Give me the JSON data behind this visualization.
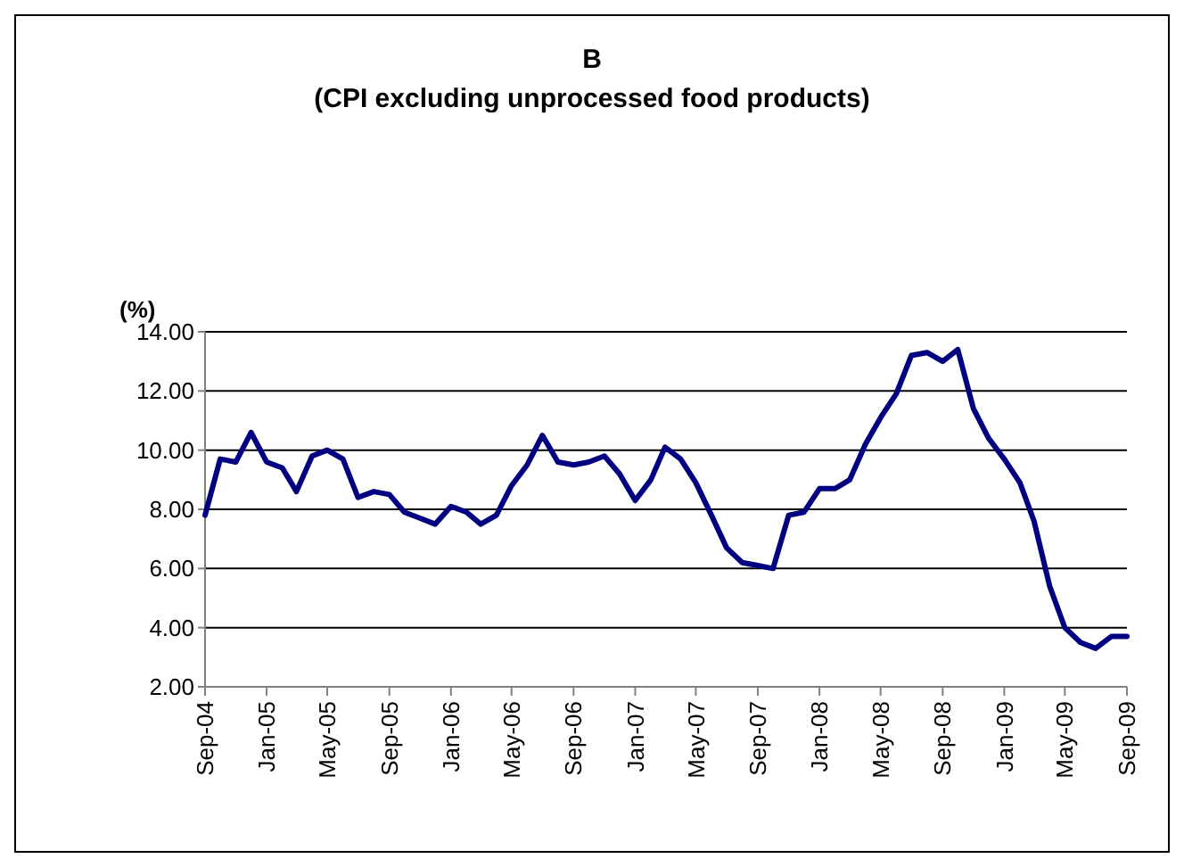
{
  "chart_data": {
    "type": "line",
    "title": "B",
    "subtitle": "(CPI excluding unprocessed food products)",
    "ylabel": "(%)",
    "x": [
      "2004-09",
      "2004-10",
      "2004-11",
      "2004-12",
      "2005-01",
      "2005-02",
      "2005-03",
      "2005-04",
      "2005-05",
      "2005-06",
      "2005-07",
      "2005-08",
      "2005-09",
      "2005-10",
      "2005-11",
      "2005-12",
      "2006-01",
      "2006-02",
      "2006-03",
      "2006-04",
      "2006-05",
      "2006-06",
      "2006-07",
      "2006-08",
      "2006-09",
      "2006-10",
      "2006-11",
      "2006-12",
      "2007-01",
      "2007-02",
      "2007-03",
      "2007-04",
      "2007-05",
      "2007-06",
      "2007-07",
      "2007-08",
      "2007-09",
      "2007-10",
      "2007-11",
      "2007-12",
      "2008-01",
      "2008-02",
      "2008-03",
      "2008-04",
      "2008-05",
      "2008-06",
      "2008-07",
      "2008-08",
      "2008-09",
      "2008-10",
      "2008-11",
      "2008-12",
      "2009-01",
      "2009-02",
      "2009-03",
      "2009-04",
      "2009-05",
      "2009-06",
      "2009-07",
      "2009-08",
      "2009-09"
    ],
    "series": [
      {
        "color": "#000080",
        "values": [
          7.8,
          9.7,
          9.6,
          10.6,
          9.6,
          9.4,
          8.6,
          9.8,
          10.0,
          9.7,
          8.4,
          8.6,
          8.5,
          7.9,
          7.7,
          7.5,
          8.1,
          7.9,
          7.5,
          7.8,
          8.8,
          9.5,
          10.5,
          9.6,
          9.5,
          9.6,
          9.8,
          9.2,
          8.3,
          9.0,
          10.1,
          9.7,
          8.9,
          7.8,
          6.7,
          6.2,
          6.1,
          6.0,
          7.8,
          7.9,
          8.7,
          8.7,
          9.0,
          10.2,
          11.1,
          11.9,
          13.2,
          13.3,
          13.0,
          13.4,
          11.4,
          10.4,
          9.7,
          8.9,
          7.6,
          5.4,
          4.0,
          3.5,
          3.3,
          3.7,
          3.7
        ]
      }
    ],
    "xlim": [
      "2004-09",
      "2009-09"
    ],
    "xticks": [
      {
        "value": "2004-09",
        "label": "Sep-04"
      },
      {
        "value": "2005-01",
        "label": "Jan-05"
      },
      {
        "value": "2005-05",
        "label": "May-05"
      },
      {
        "value": "2005-09",
        "label": "Sep-05"
      },
      {
        "value": "2006-01",
        "label": "Jan-06"
      },
      {
        "value": "2006-05",
        "label": "May-06"
      },
      {
        "value": "2006-09",
        "label": "Sep-06"
      },
      {
        "value": "2007-01",
        "label": "Jan-07"
      },
      {
        "value": "2007-05",
        "label": "May-07"
      },
      {
        "value": "2007-09",
        "label": "Sep-07"
      },
      {
        "value": "2008-01",
        "label": "Jan-08"
      },
      {
        "value": "2008-05",
        "label": "May-08"
      },
      {
        "value": "2008-09",
        "label": "Sep-08"
      },
      {
        "value": "2009-01",
        "label": "Jan-09"
      },
      {
        "value": "2009-05",
        "label": "May-09"
      },
      {
        "value": "2009-09",
        "label": "Sep-09"
      }
    ],
    "ylim": [
      2,
      14
    ],
    "yticks": [
      {
        "value": 2,
        "label": "2.00"
      },
      {
        "value": 4,
        "label": "4.00"
      },
      {
        "value": 6,
        "label": "6.00"
      },
      {
        "value": 8,
        "label": "8.00"
      },
      {
        "value": 10,
        "label": "10.00"
      },
      {
        "value": 12,
        "label": "12.00"
      },
      {
        "value": 14,
        "label": "14.00"
      }
    ],
    "grid": "y",
    "marker": "none",
    "line_style": "solid"
  }
}
